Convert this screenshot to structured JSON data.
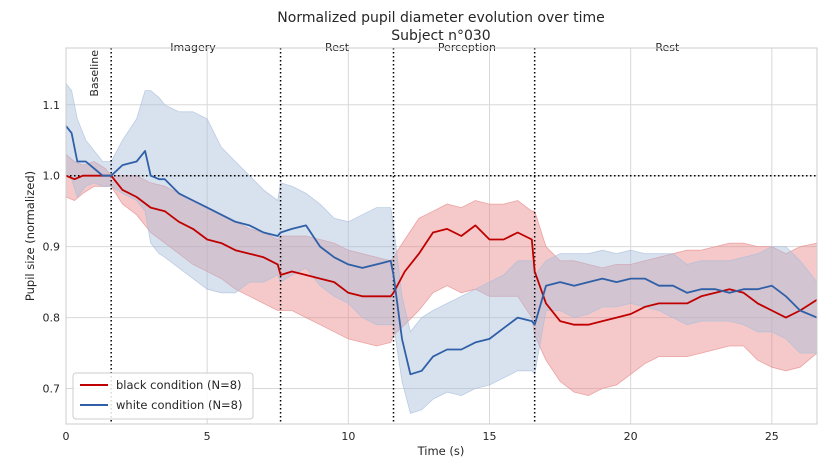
{
  "chart_data": {
    "type": "line",
    "title": "Normalized pupil diameter evolution over time",
    "subtitle": "Subject n°030",
    "xlabel": "Time (s)",
    "ylabel": "Pupil size (normalized)",
    "xlim": [
      0,
      26.6
    ],
    "ylim": [
      0.65,
      1.18
    ],
    "xticks": [
      0,
      5,
      10,
      15,
      20,
      25
    ],
    "yticks": [
      0.7,
      0.8,
      0.9,
      1.0,
      1.1
    ],
    "xtick_labels": [
      "0",
      "5",
      "10",
      "15",
      "20",
      "25"
    ],
    "ytick_labels": [
      "0.7",
      "0.8",
      "0.9",
      "1.0",
      "1.1"
    ],
    "grid": true,
    "legend_position": "lower-left",
    "reference_line": {
      "y": 1.0,
      "style": "dotted",
      "color": "#000000"
    },
    "phases": [
      {
        "label": "Baseline",
        "x": 1.0,
        "rotated": true
      },
      {
        "label": "Imagery",
        "x": 4.5
      },
      {
        "label": "Rest",
        "x": 9.6
      },
      {
        "label": "Perception",
        "x": 14.2
      },
      {
        "label": "Rest",
        "x": 21.3
      }
    ],
    "phase_boundaries": [
      1.6,
      7.6,
      11.6,
      16.6
    ],
    "series": [
      {
        "name": "black condition (N=8)",
        "color": "#c00000",
        "band_color": "#e88888",
        "x": [
          0.0,
          0.3,
          0.6,
          1.0,
          1.4,
          1.6,
          2.0,
          2.5,
          3.0,
          3.5,
          4.0,
          4.5,
          5.0,
          5.5,
          6.0,
          6.5,
          7.0,
          7.5,
          7.6,
          8.0,
          8.5,
          9.0,
          9.5,
          10.0,
          10.5,
          11.0,
          11.5,
          11.6,
          12.0,
          12.5,
          13.0,
          13.5,
          14.0,
          14.5,
          15.0,
          15.5,
          16.0,
          16.5,
          16.6,
          17.0,
          17.5,
          18.0,
          18.5,
          19.0,
          19.5,
          20.0,
          20.5,
          21.0,
          21.5,
          22.0,
          22.5,
          23.0,
          23.5,
          24.0,
          24.5,
          25.0,
          25.5,
          26.0,
          26.6
        ],
        "y": [
          1.0,
          0.995,
          1.0,
          1.0,
          1.0,
          1.0,
          0.98,
          0.97,
          0.955,
          0.95,
          0.935,
          0.925,
          0.91,
          0.905,
          0.895,
          0.89,
          0.885,
          0.875,
          0.86,
          0.865,
          0.86,
          0.855,
          0.85,
          0.835,
          0.83,
          0.83,
          0.83,
          0.835,
          0.865,
          0.89,
          0.92,
          0.925,
          0.915,
          0.93,
          0.91,
          0.91,
          0.92,
          0.91,
          0.865,
          0.82,
          0.795,
          0.79,
          0.79,
          0.795,
          0.8,
          0.805,
          0.815,
          0.82,
          0.82,
          0.82,
          0.83,
          0.835,
          0.84,
          0.835,
          0.82,
          0.81,
          0.8,
          0.81,
          0.825
        ],
        "y_upper": [
          1.03,
          1.02,
          1.015,
          1.02,
          1.01,
          1.0,
          1.0,
          1.0,
          0.99,
          0.985,
          0.975,
          0.965,
          0.955,
          0.945,
          0.935,
          0.925,
          0.92,
          0.91,
          0.915,
          0.915,
          0.915,
          0.91,
          0.905,
          0.895,
          0.89,
          0.885,
          0.88,
          0.885,
          0.91,
          0.94,
          0.95,
          0.96,
          0.955,
          0.965,
          0.96,
          0.96,
          0.965,
          0.95,
          0.95,
          0.9,
          0.88,
          0.88,
          0.875,
          0.87,
          0.875,
          0.875,
          0.88,
          0.885,
          0.89,
          0.895,
          0.895,
          0.9,
          0.905,
          0.905,
          0.9,
          0.9,
          0.89,
          0.9,
          0.905
        ],
        "y_lower": [
          0.97,
          0.965,
          0.975,
          0.985,
          0.985,
          0.985,
          0.96,
          0.945,
          0.92,
          0.905,
          0.89,
          0.875,
          0.865,
          0.855,
          0.84,
          0.83,
          0.82,
          0.81,
          0.81,
          0.81,
          0.8,
          0.79,
          0.78,
          0.77,
          0.765,
          0.76,
          0.765,
          0.775,
          0.79,
          0.81,
          0.835,
          0.845,
          0.835,
          0.84,
          0.83,
          0.83,
          0.83,
          0.8,
          0.775,
          0.74,
          0.71,
          0.695,
          0.69,
          0.7,
          0.705,
          0.72,
          0.735,
          0.745,
          0.745,
          0.745,
          0.75,
          0.755,
          0.76,
          0.76,
          0.74,
          0.73,
          0.725,
          0.73,
          0.75
        ]
      },
      {
        "name": "white condition (N=8)",
        "color": "#2f5fa7",
        "band_color": "#a9bedc",
        "x": [
          0.0,
          0.2,
          0.4,
          0.7,
          1.0,
          1.3,
          1.6,
          2.0,
          2.5,
          2.8,
          3.0,
          3.3,
          3.5,
          4.0,
          4.5,
          5.0,
          5.5,
          6.0,
          6.5,
          7.0,
          7.5,
          7.6,
          8.0,
          8.5,
          9.0,
          9.5,
          10.0,
          10.5,
          11.0,
          11.5,
          11.6,
          11.9,
          12.2,
          12.6,
          13.0,
          13.5,
          14.0,
          14.5,
          15.0,
          15.5,
          16.0,
          16.5,
          16.6,
          17.0,
          17.5,
          18.0,
          18.5,
          19.0,
          19.5,
          20.0,
          20.5,
          21.0,
          21.5,
          22.0,
          22.5,
          23.0,
          23.5,
          24.0,
          24.5,
          25.0,
          25.5,
          26.0,
          26.6
        ],
        "y": [
          1.07,
          1.06,
          1.02,
          1.02,
          1.01,
          1.0,
          1.0,
          1.015,
          1.02,
          1.035,
          1.0,
          0.995,
          0.995,
          0.975,
          0.965,
          0.955,
          0.945,
          0.935,
          0.93,
          0.92,
          0.915,
          0.92,
          0.925,
          0.93,
          0.9,
          0.885,
          0.875,
          0.87,
          0.875,
          0.88,
          0.86,
          0.77,
          0.72,
          0.725,
          0.745,
          0.755,
          0.755,
          0.765,
          0.77,
          0.785,
          0.8,
          0.795,
          0.79,
          0.845,
          0.85,
          0.845,
          0.85,
          0.855,
          0.85,
          0.855,
          0.855,
          0.845,
          0.845,
          0.835,
          0.84,
          0.84,
          0.835,
          0.84,
          0.84,
          0.845,
          0.83,
          0.81,
          0.8
        ],
        "y_upper": [
          1.13,
          1.12,
          1.08,
          1.05,
          1.035,
          1.02,
          1.02,
          1.05,
          1.08,
          1.12,
          1.12,
          1.11,
          1.1,
          1.09,
          1.09,
          1.08,
          1.04,
          1.02,
          1.0,
          0.98,
          0.965,
          0.99,
          0.985,
          0.975,
          0.96,
          0.94,
          0.935,
          0.945,
          0.955,
          0.955,
          0.93,
          0.83,
          0.78,
          0.8,
          0.81,
          0.82,
          0.83,
          0.84,
          0.85,
          0.86,
          0.88,
          0.88,
          0.86,
          0.88,
          0.89,
          0.89,
          0.89,
          0.895,
          0.89,
          0.895,
          0.89,
          0.89,
          0.89,
          0.875,
          0.88,
          0.88,
          0.88,
          0.885,
          0.89,
          0.9,
          0.9,
          0.88,
          0.85
        ],
        "y_lower": [
          1.0,
          0.995,
          0.97,
          0.985,
          0.99,
          0.985,
          0.985,
          0.975,
          0.965,
          0.95,
          0.905,
          0.89,
          0.885,
          0.87,
          0.855,
          0.84,
          0.835,
          0.835,
          0.85,
          0.85,
          0.86,
          0.85,
          0.86,
          0.87,
          0.845,
          0.83,
          0.82,
          0.8,
          0.79,
          0.79,
          0.79,
          0.71,
          0.665,
          0.67,
          0.685,
          0.695,
          0.69,
          0.7,
          0.705,
          0.715,
          0.725,
          0.725,
          0.72,
          0.81,
          0.81,
          0.8,
          0.805,
          0.815,
          0.815,
          0.82,
          0.815,
          0.81,
          0.8,
          0.79,
          0.795,
          0.795,
          0.795,
          0.79,
          0.78,
          0.78,
          0.77,
          0.75,
          0.75
        ]
      }
    ]
  }
}
